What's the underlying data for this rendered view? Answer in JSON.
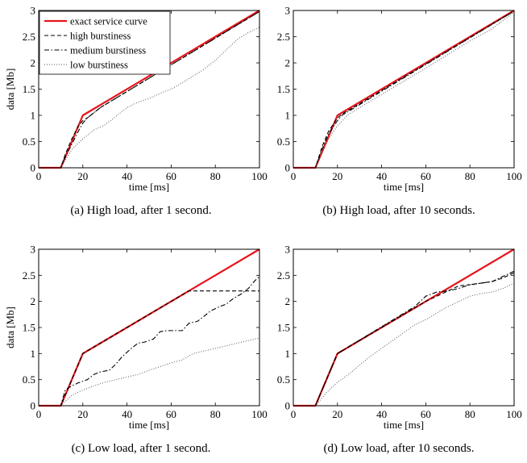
{
  "figure": {
    "panels": [
      {
        "tag": "(a)",
        "text": "High load, after 1 second."
      },
      {
        "tag": "(b)",
        "text": "High load, after 10 seconds."
      },
      {
        "tag": "(c)",
        "text": "Low load, after 1 second."
      },
      {
        "tag": "(d)",
        "text": "Low load, after 10 seconds."
      }
    ]
  },
  "colors": {
    "exact": "#e8141c",
    "high": "#000000",
    "medium": "#000000",
    "low": "#555555",
    "axis": "#000000"
  },
  "chart_data": [
    {
      "type": "line",
      "panel": "a",
      "xlabel": "time [ms]",
      "ylabel": "data [Mb]",
      "xlim": [
        0,
        100
      ],
      "ylim": [
        0,
        3
      ],
      "xticks": [
        0,
        20,
        40,
        60,
        80,
        100
      ],
      "yticks": [
        0,
        0.5,
        1,
        1.5,
        2,
        2.5,
        3
      ],
      "legend_position": "top-left",
      "series": [
        {
          "name": "exact service curve",
          "style": "solid",
          "x": [
            0,
            10,
            20,
            100
          ],
          "y": [
            0,
            0,
            1,
            3
          ]
        },
        {
          "name": "high burstiness",
          "style": "dashed",
          "x": [
            0,
            10,
            12,
            15,
            18,
            20,
            22,
            25,
            28,
            100
          ],
          "y": [
            0,
            0,
            0.25,
            0.55,
            0.8,
            0.9,
            0.95,
            1.05,
            1.15,
            2.98
          ]
        },
        {
          "name": "medium burstiness",
          "style": "dashdot",
          "x": [
            0,
            10,
            12,
            15,
            18,
            20,
            22,
            25,
            28,
            100
          ],
          "y": [
            0,
            0,
            0.2,
            0.45,
            0.7,
            0.85,
            0.95,
            1.05,
            1.15,
            2.98
          ]
        },
        {
          "name": "low burstiness",
          "style": "dotted",
          "x": [
            0,
            10,
            15,
            20,
            25,
            30,
            35,
            40,
            45,
            50,
            55,
            60,
            65,
            70,
            75,
            80,
            85,
            90,
            95,
            100
          ],
          "y": [
            0,
            0,
            0.35,
            0.55,
            0.72,
            0.82,
            0.98,
            1.15,
            1.25,
            1.32,
            1.42,
            1.5,
            1.62,
            1.75,
            1.88,
            2.05,
            2.25,
            2.45,
            2.58,
            2.68
          ]
        }
      ]
    },
    {
      "type": "line",
      "panel": "b",
      "xlabel": "time [ms]",
      "ylabel": "",
      "xlim": [
        0,
        100
      ],
      "ylim": [
        0,
        3
      ],
      "xticks": [
        0,
        20,
        40,
        60,
        80,
        100
      ],
      "yticks": [
        0,
        0.5,
        1,
        1.5,
        2,
        2.5,
        3
      ],
      "series": [
        {
          "name": "exact service curve",
          "style": "solid",
          "x": [
            0,
            10,
            20,
            100
          ],
          "y": [
            0,
            0,
            1,
            3
          ]
        },
        {
          "name": "high burstiness",
          "style": "dashed",
          "x": [
            0,
            10,
            13,
            16,
            20,
            22,
            100
          ],
          "y": [
            0,
            0,
            0.4,
            0.7,
            0.95,
            1.02,
            2.99
          ]
        },
        {
          "name": "medium burstiness",
          "style": "dashdot",
          "x": [
            0,
            10,
            13,
            16,
            20,
            22,
            100
          ],
          "y": [
            0,
            0,
            0.35,
            0.65,
            0.9,
            1.0,
            2.99
          ]
        },
        {
          "name": "low burstiness",
          "style": "dotted",
          "x": [
            0,
            10,
            13,
            16,
            20,
            25,
            40,
            60,
            80,
            90,
            100
          ],
          "y": [
            0,
            0,
            0.3,
            0.55,
            0.8,
            1.02,
            1.4,
            1.9,
            2.42,
            2.65,
            2.97
          ]
        }
      ]
    },
    {
      "type": "line",
      "panel": "c",
      "xlabel": "time [ms]",
      "ylabel": "data [Mb]",
      "xlim": [
        0,
        100
      ],
      "ylim": [
        0,
        3
      ],
      "xticks": [
        0,
        20,
        40,
        60,
        80,
        100
      ],
      "yticks": [
        0,
        0.5,
        1,
        1.5,
        2,
        2.5,
        3
      ],
      "series": [
        {
          "name": "exact service curve",
          "style": "solid",
          "x": [
            0,
            10,
            20,
            100
          ],
          "y": [
            0,
            0,
            1,
            3
          ]
        },
        {
          "name": "high burstiness",
          "style": "dashed",
          "x": [
            0,
            10,
            20,
            68,
            70,
            100
          ],
          "y": [
            0,
            0,
            1,
            2.2,
            2.2,
            2.2
          ]
        },
        {
          "name": "medium burstiness",
          "style": "dashdot",
          "x": [
            0,
            10,
            12,
            15,
            18,
            22,
            25,
            28,
            32,
            35,
            38,
            42,
            45,
            48,
            52,
            55,
            58,
            62,
            65,
            68,
            72,
            75,
            78,
            82,
            85,
            88,
            92,
            95,
            98,
            100
          ],
          "y": [
            0,
            0,
            0.3,
            0.38,
            0.44,
            0.5,
            0.6,
            0.65,
            0.68,
            0.8,
            0.95,
            1.1,
            1.2,
            1.22,
            1.28,
            1.42,
            1.44,
            1.44,
            1.44,
            1.58,
            1.62,
            1.72,
            1.82,
            1.9,
            1.95,
            2.05,
            2.15,
            2.25,
            2.4,
            2.48
          ]
        },
        {
          "name": "low burstiness",
          "style": "dotted",
          "x": [
            0,
            10,
            15,
            20,
            25,
            30,
            35,
            40,
            45,
            50,
            55,
            60,
            65,
            70,
            75,
            80,
            85,
            90,
            95,
            100
          ],
          "y": [
            0,
            0,
            0.2,
            0.3,
            0.38,
            0.45,
            0.5,
            0.55,
            0.6,
            0.68,
            0.75,
            0.82,
            0.88,
            1.0,
            1.05,
            1.1,
            1.15,
            1.2,
            1.25,
            1.3
          ]
        }
      ]
    },
    {
      "type": "line",
      "panel": "d",
      "xlabel": "time [ms]",
      "ylabel": "",
      "xlim": [
        0,
        100
      ],
      "ylim": [
        0,
        3
      ],
      "xticks": [
        0,
        20,
        40,
        60,
        80,
        100
      ],
      "yticks": [
        0,
        0.5,
        1,
        1.5,
        2,
        2.5,
        3
      ],
      "series": [
        {
          "name": "exact service curve",
          "style": "solid",
          "x": [
            0,
            10,
            20,
            100
          ],
          "y": [
            0,
            0,
            1,
            3
          ]
        },
        {
          "name": "high burstiness",
          "style": "dashed",
          "x": [
            0,
            10,
            20,
            60,
            65,
            70,
            75,
            80,
            85,
            90,
            95,
            100
          ],
          "y": [
            0,
            0,
            1,
            2.0,
            2.1,
            2.2,
            2.3,
            2.32,
            2.35,
            2.38,
            2.45,
            2.55
          ]
        },
        {
          "name": "medium burstiness",
          "style": "dashdot",
          "x": [
            0,
            10,
            20,
            55,
            60,
            65,
            70,
            75,
            80,
            85,
            90,
            95,
            100
          ],
          "y": [
            0,
            0,
            1,
            1.9,
            2.1,
            2.18,
            2.2,
            2.25,
            2.32,
            2.35,
            2.38,
            2.48,
            2.58
          ]
        },
        {
          "name": "low burstiness",
          "style": "dotted",
          "x": [
            0,
            10,
            15,
            20,
            25,
            30,
            35,
            40,
            45,
            50,
            55,
            60,
            65,
            70,
            75,
            80,
            85,
            90,
            95,
            100
          ],
          "y": [
            0,
            0,
            0.25,
            0.45,
            0.6,
            0.78,
            0.95,
            1.1,
            1.25,
            1.4,
            1.55,
            1.65,
            1.78,
            1.9,
            2.0,
            2.1,
            2.15,
            2.18,
            2.25,
            2.35
          ]
        }
      ]
    }
  ]
}
